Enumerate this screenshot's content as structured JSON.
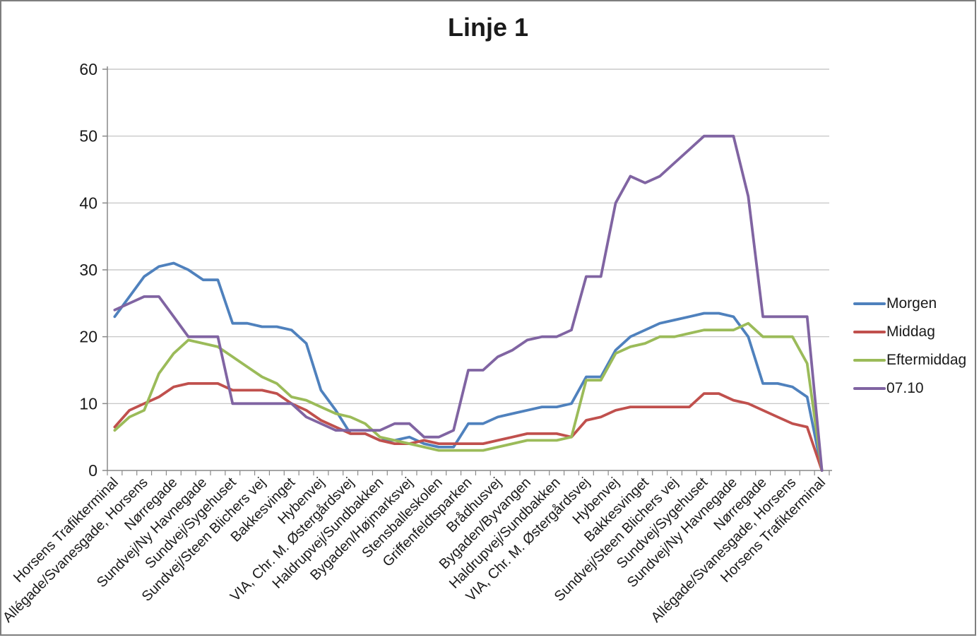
{
  "title": "Linje 1",
  "chart_data": {
    "type": "line",
    "title": "Linje 1",
    "ylabel": "",
    "xlabel": "",
    "ylim": [
      0,
      60
    ],
    "yticks": [
      0,
      10,
      20,
      30,
      40,
      50,
      60
    ],
    "grid": "horizontal",
    "legend_position": "right",
    "n_points": 49,
    "x_label_interval": 2,
    "x_labels": [
      "Horsens Trafikterminal",
      "Allégade/Svanesgade, Horsens",
      "Nørregade",
      "Sundvej/Ny Havnegade",
      "Sundvej/Sygehuset",
      "Sundvej/Steen Blichers vej",
      "Bakkesvinget",
      "Hybenvej",
      "VIA, Chr. M. Østergårdsvej",
      "Haldrupvej/Sundbakken",
      "Bygaden/Højmarksvej",
      "Stensballeskolen",
      "Griffenfeldtsparken",
      "Brådhusvej",
      "Bygaden/Byvangen",
      "Haldrupvej/Sundbakken",
      "VIA, Chr. M. Østergårdsvej",
      "Hybenvej",
      "Bakkesvinget",
      "Sundvej/Steen Blichers vej",
      "Sundvej/Sygehuset",
      "Sundvej/Ny Havnegade",
      "Nørregade",
      "Allégade/Svanesgade, Horsens",
      "Horsens Trafikterminal"
    ],
    "series": [
      {
        "name": "Morgen",
        "color": "#4F81BD",
        "values": [
          23,
          26,
          29,
          30.5,
          31,
          30,
          28.5,
          28.5,
          22,
          22,
          21.5,
          21.5,
          21,
          19,
          12,
          9,
          5.5,
          5.5,
          4.5,
          4.5,
          5,
          4,
          3.5,
          3.5,
          7,
          7,
          8,
          8.5,
          9,
          9.5,
          9.5,
          10,
          14,
          14,
          18,
          20,
          21,
          22,
          22.5,
          23,
          23.5,
          23.5,
          23,
          20,
          13,
          13,
          12.5,
          11,
          0
        ]
      },
      {
        "name": "Middag",
        "color": "#C0504D",
        "values": [
          6.5,
          9,
          10,
          11,
          12.5,
          13,
          13,
          13,
          12,
          12,
          12,
          11.5,
          10,
          9,
          7.5,
          6.5,
          5.5,
          5.5,
          4.5,
          4,
          4,
          4.5,
          4,
          4,
          4,
          4,
          4.5,
          5,
          5.5,
          5.5,
          5.5,
          5,
          7.5,
          8,
          9,
          9.5,
          9.5,
          9.5,
          9.5,
          9.5,
          11.5,
          11.5,
          10.5,
          10,
          9,
          8,
          7,
          6.5,
          0
        ]
      },
      {
        "name": "Eftermiddag",
        "color": "#9BBB59",
        "values": [
          6,
          8,
          9,
          14.5,
          17.5,
          19.5,
          19,
          18.5,
          17,
          15.5,
          14,
          13,
          11,
          10.5,
          9.5,
          8.5,
          8,
          7,
          5,
          4.5,
          4,
          3.5,
          3,
          3,
          3,
          3,
          3.5,
          4,
          4.5,
          4.5,
          4.5,
          5,
          13.5,
          13.5,
          17.5,
          18.5,
          19,
          20,
          20,
          20.5,
          21,
          21,
          21,
          22,
          20,
          20,
          20,
          16,
          0
        ]
      },
      {
        "name": "07.10",
        "color": "#8064A2",
        "values": [
          24,
          25,
          26,
          26,
          23,
          20,
          20,
          20,
          10,
          10,
          10,
          10,
          10,
          8,
          7,
          6,
          6,
          6,
          6,
          7,
          7,
          5,
          5,
          6,
          15,
          15,
          17,
          18,
          19.5,
          20,
          20,
          21,
          29,
          29,
          40,
          44,
          43,
          44,
          46,
          48,
          50,
          50,
          50,
          41,
          23,
          23,
          23,
          23,
          0
        ]
      }
    ]
  },
  "colors": {
    "gridline": "#BFBFBF",
    "axis": "#898989",
    "text": "#1a1a1a",
    "background": "#ffffff",
    "frame_border": "#7e7e7e"
  }
}
